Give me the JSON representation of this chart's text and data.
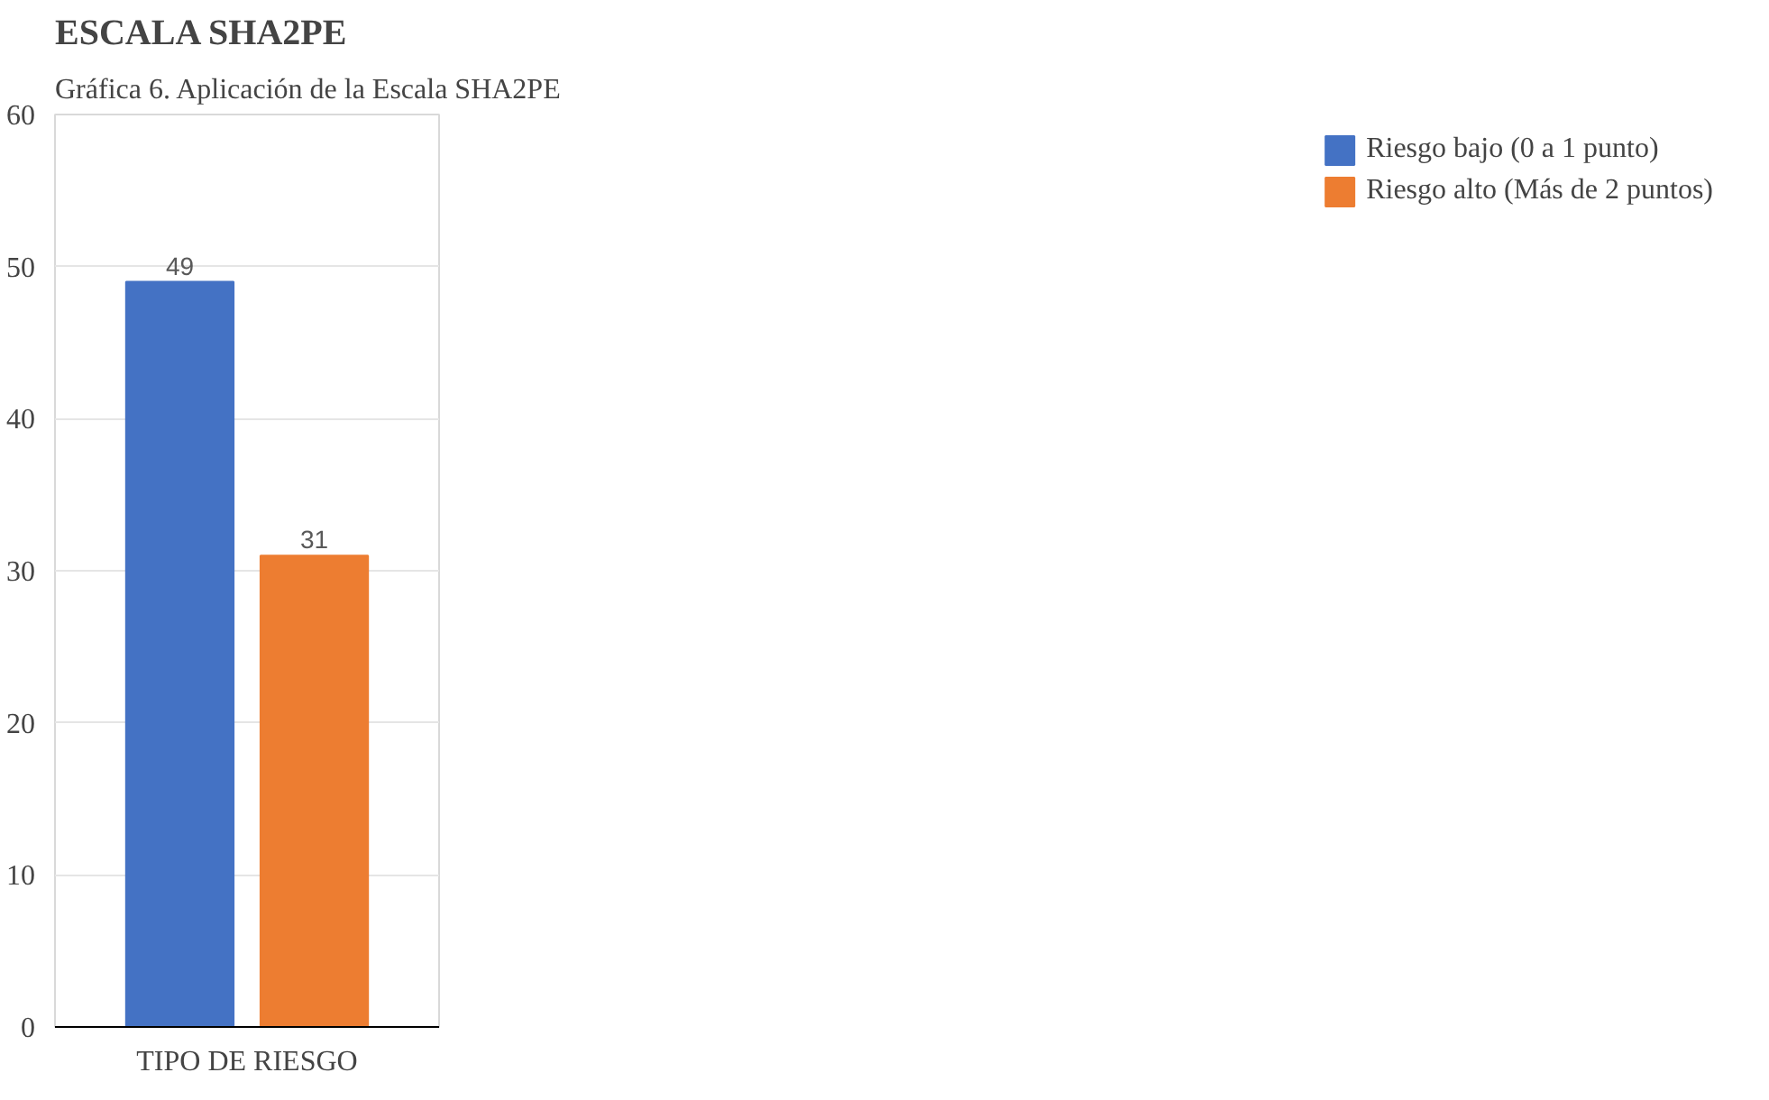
{
  "chart_data": {
    "type": "bar",
    "title": "ESCALA SHA2PE",
    "annotations": [
      "Gráfica 6. Aplicación de la Escala SHA2PE"
    ],
    "xlabel": "TIPO DE RIESGO",
    "categories": [
      null
    ],
    "series": [
      {
        "name": "Riesgo bajo (0 a 1 punto)",
        "color": "#4472c4",
        "values": [
          49
        ]
      },
      {
        "name": "Riesgo alto (Más de 2 puntos)",
        "color": "#ed7d31",
        "values": [
          31
        ]
      }
    ],
    "ylim": [
      0,
      60
    ],
    "yticks": [
      0,
      10,
      20,
      30,
      40,
      50,
      60
    ],
    "grid": "y",
    "legend": "right",
    "data_labels": true
  }
}
